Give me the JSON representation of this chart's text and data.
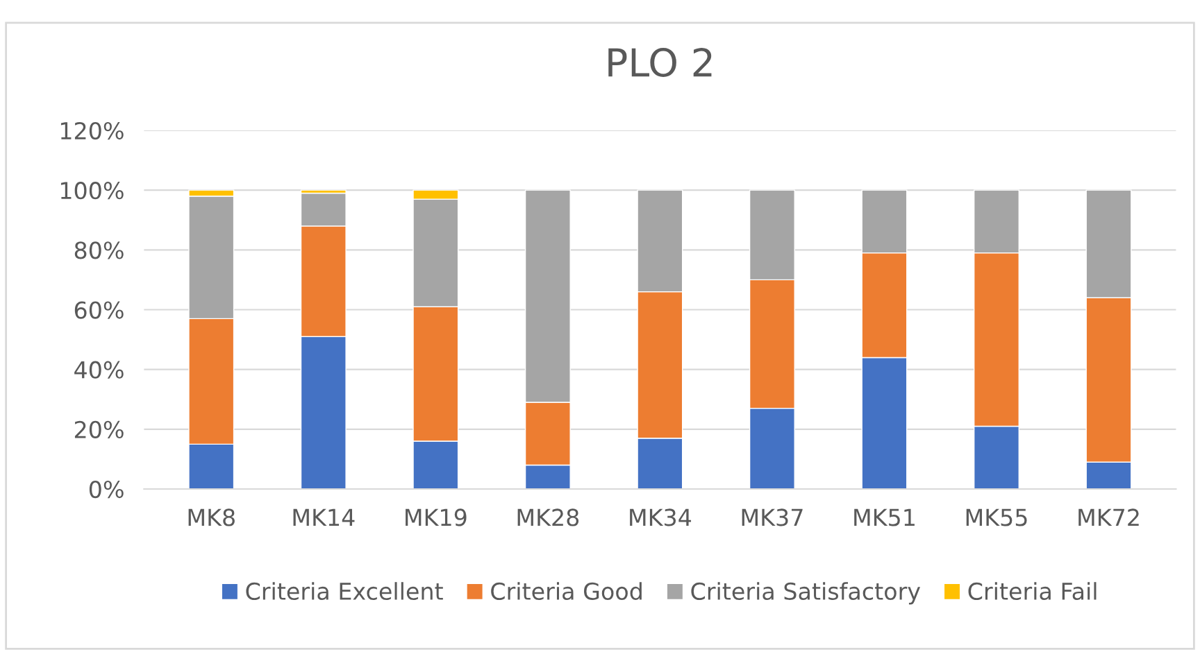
{
  "chart_data": {
    "type": "bar",
    "title": "PLO 2",
    "stacked": true,
    "categories": [
      "MK8",
      "MK14",
      "MK19",
      "MK28",
      "MK34",
      "MK37",
      "MK51",
      "MK55",
      "MK72"
    ],
    "series": [
      {
        "name": "Criteria Excellent",
        "color": "#4472c4",
        "values": [
          15,
          51,
          16,
          8,
          17,
          27,
          44,
          21,
          9
        ]
      },
      {
        "name": "Criteria Good",
        "color": "#ed7d31",
        "values": [
          42,
          37,
          45,
          21,
          49,
          43,
          35,
          58,
          55
        ]
      },
      {
        "name": "Criteria Satisfactory",
        "color": "#a5a5a5",
        "values": [
          41,
          11,
          36,
          71,
          34,
          30,
          21,
          21,
          36
        ]
      },
      {
        "name": "Criteria Fail",
        "color": "#ffc000",
        "values": [
          2,
          1,
          3,
          null,
          null,
          null,
          null,
          null,
          null
        ]
      }
    ],
    "ylim": [
      0,
      120
    ],
    "yticks": [
      {
        "value": 0,
        "label": "0%"
      },
      {
        "value": 20,
        "label": "20%"
      },
      {
        "value": 40,
        "label": "40%"
      },
      {
        "value": 60,
        "label": "60%"
      },
      {
        "value": 80,
        "label": "80%"
      },
      {
        "value": 100,
        "label": "100%"
      },
      {
        "value": 120,
        "label": "120%"
      }
    ],
    "grid": "y",
    "legend": "bottom"
  }
}
